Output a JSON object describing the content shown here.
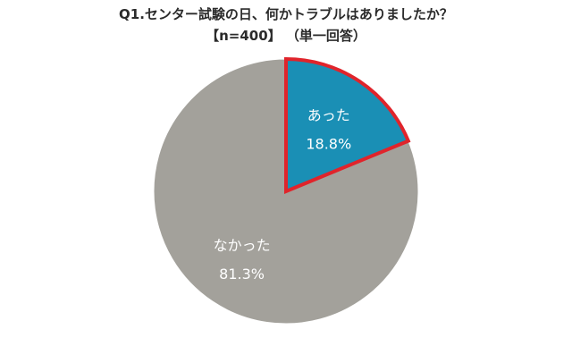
{
  "chart_data": {
    "type": "pie",
    "title": "Q1.センター試験の日、何かトラブルはありましたか？",
    "subtitle": "【n=400】 （単一回答）",
    "slices": [
      {
        "label": "あった",
        "value": 18.8,
        "value_label": "18.8%",
        "color": "#1a8fb5",
        "stroke": "#e0242b",
        "highlighted": true
      },
      {
        "label": "なかった",
        "value": 81.3,
        "value_label": "81.3%",
        "color": "#a3a19b",
        "stroke": "#ffffff",
        "highlighted": false
      }
    ],
    "start_angle_deg": 0,
    "direction": "clockwise",
    "legend": "none"
  }
}
